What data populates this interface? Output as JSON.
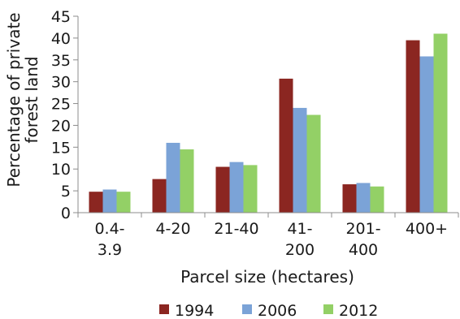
{
  "chart_data": {
    "type": "bar",
    "categories": [
      [
        "0.4-",
        "3.9"
      ],
      [
        "4-20"
      ],
      [
        "21-40"
      ],
      [
        "41-",
        "200"
      ],
      [
        "201-",
        "400"
      ],
      [
        "400+"
      ]
    ],
    "series": [
      {
        "name": "1994",
        "color": "#8b2621",
        "values": [
          4.8,
          7.7,
          10.5,
          30.7,
          6.5,
          39.5
        ]
      },
      {
        "name": "2006",
        "color": "#7ba3d7",
        "values": [
          5.3,
          16.0,
          11.6,
          24.0,
          6.8,
          35.8
        ]
      },
      {
        "name": "2012",
        "color": "#93d066",
        "values": [
          4.8,
          14.5,
          10.9,
          22.4,
          6.0,
          41.0
        ]
      }
    ],
    "yticks": [
      0,
      5,
      10,
      15,
      20,
      25,
      30,
      35,
      40,
      45
    ],
    "ylim": [
      0,
      45
    ],
    "xlabel": "Parcel size (hectares)",
    "ylabel": [
      "Percentage of private",
      "forest land"
    ],
    "legend_position": "bottom",
    "grid": false
  }
}
